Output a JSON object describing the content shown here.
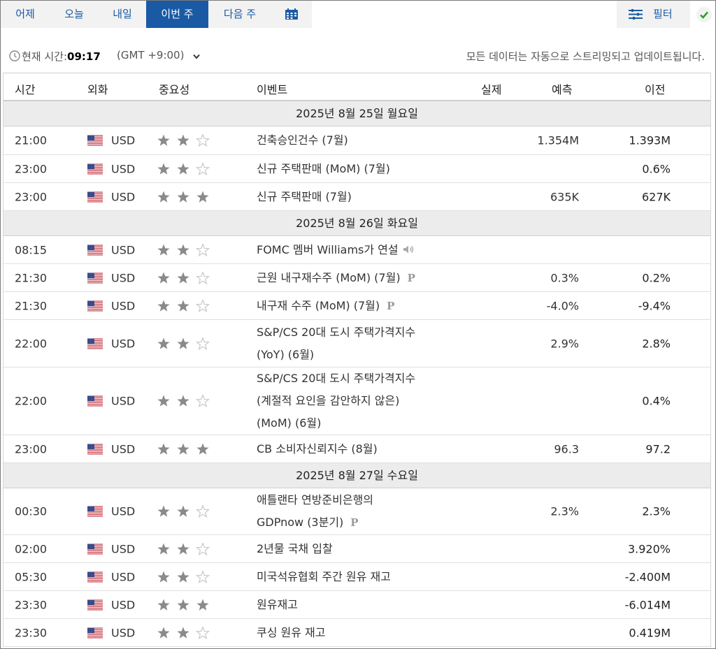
{
  "tabs": [
    {
      "label": "어제",
      "active": false
    },
    {
      "label": "오늘",
      "active": false
    },
    {
      "label": "내일",
      "active": false
    },
    {
      "label": "이번 주",
      "active": true
    },
    {
      "label": "다음 주",
      "active": false
    }
  ],
  "calendar_icon": "calendar-icon",
  "filter": {
    "label": "필터",
    "icon": "filter-icon"
  },
  "status": {
    "time_label": "현재 시간:",
    "time_value": "09:17",
    "tz": "(GMT +9:00)",
    "auto_text": "모든 데이터는 자동으로 스트리밍되고 업데이트됩니다."
  },
  "header": {
    "time": "시간",
    "currency": "외화",
    "importance": "중요성",
    "event": "이벤트",
    "actual": "실제",
    "forecast": "예측",
    "previous": "이전"
  },
  "days": [
    {
      "date": "2025년 8월 25일 월요일",
      "events": [
        {
          "time": "21:00",
          "currency": "USD",
          "stars": 2,
          "lines": [
            "건축승인건수 (7월)"
          ],
          "p": false,
          "speech": false,
          "actual": "",
          "forecast": "1.354M",
          "previous": "1.393M"
        },
        {
          "time": "23:00",
          "currency": "USD",
          "stars": 2,
          "lines": [
            "신규 주택판매 (MoM) (7월)"
          ],
          "p": false,
          "speech": false,
          "actual": "",
          "forecast": "",
          "previous": "0.6%"
        },
        {
          "time": "23:00",
          "currency": "USD",
          "stars": 3,
          "lines": [
            "신규 주택판매 (7월)"
          ],
          "p": false,
          "speech": false,
          "actual": "",
          "forecast": "635K",
          "previous": "627K"
        }
      ]
    },
    {
      "date": "2025년 8월 26일 화요일",
      "events": [
        {
          "time": "08:15",
          "currency": "USD",
          "stars": 2,
          "lines": [
            "FOMC 멤버 Williams가 연설"
          ],
          "p": false,
          "speech": true,
          "actual": "",
          "forecast": "",
          "previous": ""
        },
        {
          "time": "21:30",
          "currency": "USD",
          "stars": 2,
          "lines": [
            "근원 내구재수주 (MoM) (7월)"
          ],
          "p": true,
          "speech": false,
          "actual": "",
          "forecast": "0.3%",
          "previous": "0.2%"
        },
        {
          "time": "21:30",
          "currency": "USD",
          "stars": 2,
          "lines": [
            "내구재 수주 (MoM) (7월)"
          ],
          "p": true,
          "speech": false,
          "actual": "",
          "forecast": "-4.0%",
          "previous": "-9.4%"
        },
        {
          "time": "22:00",
          "currency": "USD",
          "stars": 2,
          "lines": [
            "S&P/CS 20대 도시 주택가격지수",
            "(YoY) (6월)"
          ],
          "p": false,
          "speech": false,
          "actual": "",
          "forecast": "2.9%",
          "previous": "2.8%"
        },
        {
          "time": "22:00",
          "currency": "USD",
          "stars": 2,
          "lines": [
            "S&P/CS 20대 도시 주택가격지수",
            "(계절적 요인을 감안하지 않은)",
            "(MoM) (6월)"
          ],
          "p": false,
          "speech": false,
          "actual": "",
          "forecast": "",
          "previous": "0.4%"
        },
        {
          "time": "23:00",
          "currency": "USD",
          "stars": 3,
          "lines": [
            "CB 소비자신뢰지수 (8월)"
          ],
          "p": false,
          "speech": false,
          "actual": "",
          "forecast": "96.3",
          "previous": "97.2"
        }
      ]
    },
    {
      "date": "2025년 8월 27일 수요일",
      "events": [
        {
          "time": "00:30",
          "currency": "USD",
          "stars": 2,
          "lines": [
            "애틀랜타 연방준비은행의",
            "GDPnow (3분기)"
          ],
          "p": true,
          "speech": false,
          "actual": "",
          "forecast": "2.3%",
          "previous": "2.3%"
        },
        {
          "time": "02:00",
          "currency": "USD",
          "stars": 2,
          "lines": [
            "2년물 국채 입찰"
          ],
          "p": false,
          "speech": false,
          "actual": "",
          "forecast": "",
          "previous": "3.920%"
        },
        {
          "time": "05:30",
          "currency": "USD",
          "stars": 2,
          "lines": [
            "미국석유협회 주간 원유 재고"
          ],
          "p": false,
          "speech": false,
          "actual": "",
          "forecast": "",
          "previous": "-2.400M"
        },
        {
          "time": "23:30",
          "currency": "USD",
          "stars": 3,
          "lines": [
            "원유재고"
          ],
          "p": false,
          "speech": false,
          "actual": "",
          "forecast": "",
          "previous": "-6.014M"
        },
        {
          "time": "23:30",
          "currency": "USD",
          "stars": 2,
          "lines": [
            "쿠싱 원유 재고"
          ],
          "p": false,
          "speech": false,
          "actual": "",
          "forecast": "",
          "previous": "0.419M"
        }
      ]
    }
  ],
  "p_mark": "P",
  "colors": {
    "accent": "#1a5aa5",
    "star_on": "#8a8a8a",
    "star_off": "#c8c8c8",
    "check": "#2aa02a"
  }
}
